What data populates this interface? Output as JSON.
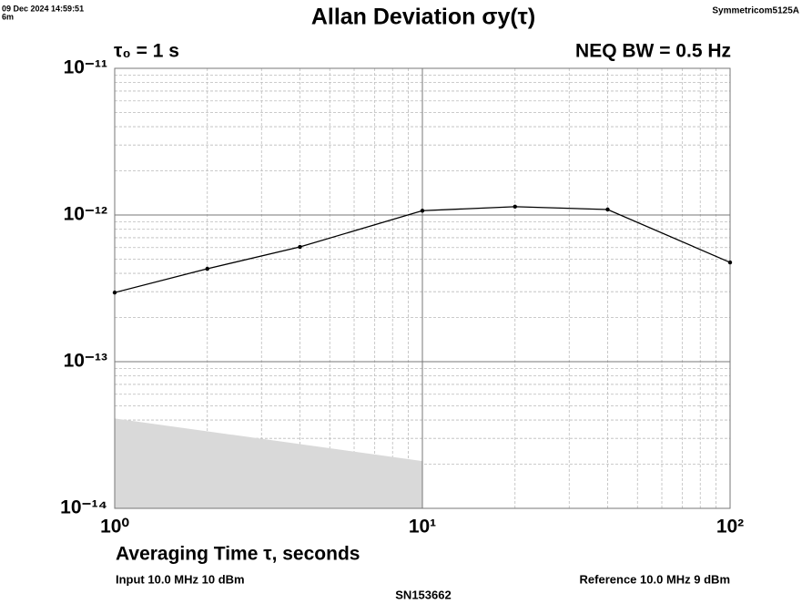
{
  "chart_data": {
    "type": "line",
    "timestamp": "09 Dec 2024 14:59:51",
    "duration": "6m",
    "title": "Allan Deviation σy(τ)",
    "instrument": "Symmetricom5125A",
    "tau0": "τ₀ = 1 s",
    "bandwidth": "NEQ BW = 0.5 Hz",
    "x_label": "Averaging Time τ, seconds",
    "input": "Input 10.0 MHz 10 dBm",
    "reference": "Reference 10.0 MHz 9 dBm",
    "serial": "SN153662",
    "log_x": true,
    "log_y": true,
    "grid": true,
    "xlim": [
      1,
      100
    ],
    "ylim": [
      1e-14,
      1e-11
    ],
    "xticks": [
      {
        "value": 1,
        "label": "10⁰"
      },
      {
        "value": 10,
        "label": "10¹"
      },
      {
        "value": 100,
        "label": "10²"
      }
    ],
    "yticks": [
      {
        "value": 1e-14,
        "label": "10⁻¹⁴"
      },
      {
        "value": 1e-13,
        "label": "10⁻¹³"
      },
      {
        "value": 1e-12,
        "label": "10⁻¹²"
      },
      {
        "value": 1e-11,
        "label": "10⁻¹¹"
      }
    ],
    "xminor_ticks": [
      2,
      3,
      4,
      5,
      6,
      7,
      8,
      9,
      20,
      30,
      40,
      50,
      60,
      70,
      80,
      90
    ],
    "yminor_ticks": [
      2e-14,
      3e-14,
      4e-14,
      5e-14,
      6e-14,
      7e-14,
      8e-14,
      9e-14,
      2e-13,
      3e-13,
      4e-13,
      5e-13,
      6e-13,
      7e-13,
      8e-13,
      9e-13,
      2e-12,
      3e-12,
      4e-12,
      5e-12,
      6e-12,
      7e-12,
      8e-12,
      9e-12
    ],
    "series": [
      {
        "style": "area",
        "color": "#d9d9d9",
        "x": [
          1,
          10
        ],
        "values": [
          4.1e-14,
          2.1e-14
        ]
      },
      {
        "style": "line",
        "color": "#000000",
        "x": [
          1,
          2,
          4,
          10,
          20,
          40,
          100
        ],
        "values": [
          2.96e-13,
          4.3e-13,
          6.06e-13,
          1.07e-12,
          1.14e-12,
          1.09e-12,
          4.75e-13
        ]
      }
    ]
  }
}
